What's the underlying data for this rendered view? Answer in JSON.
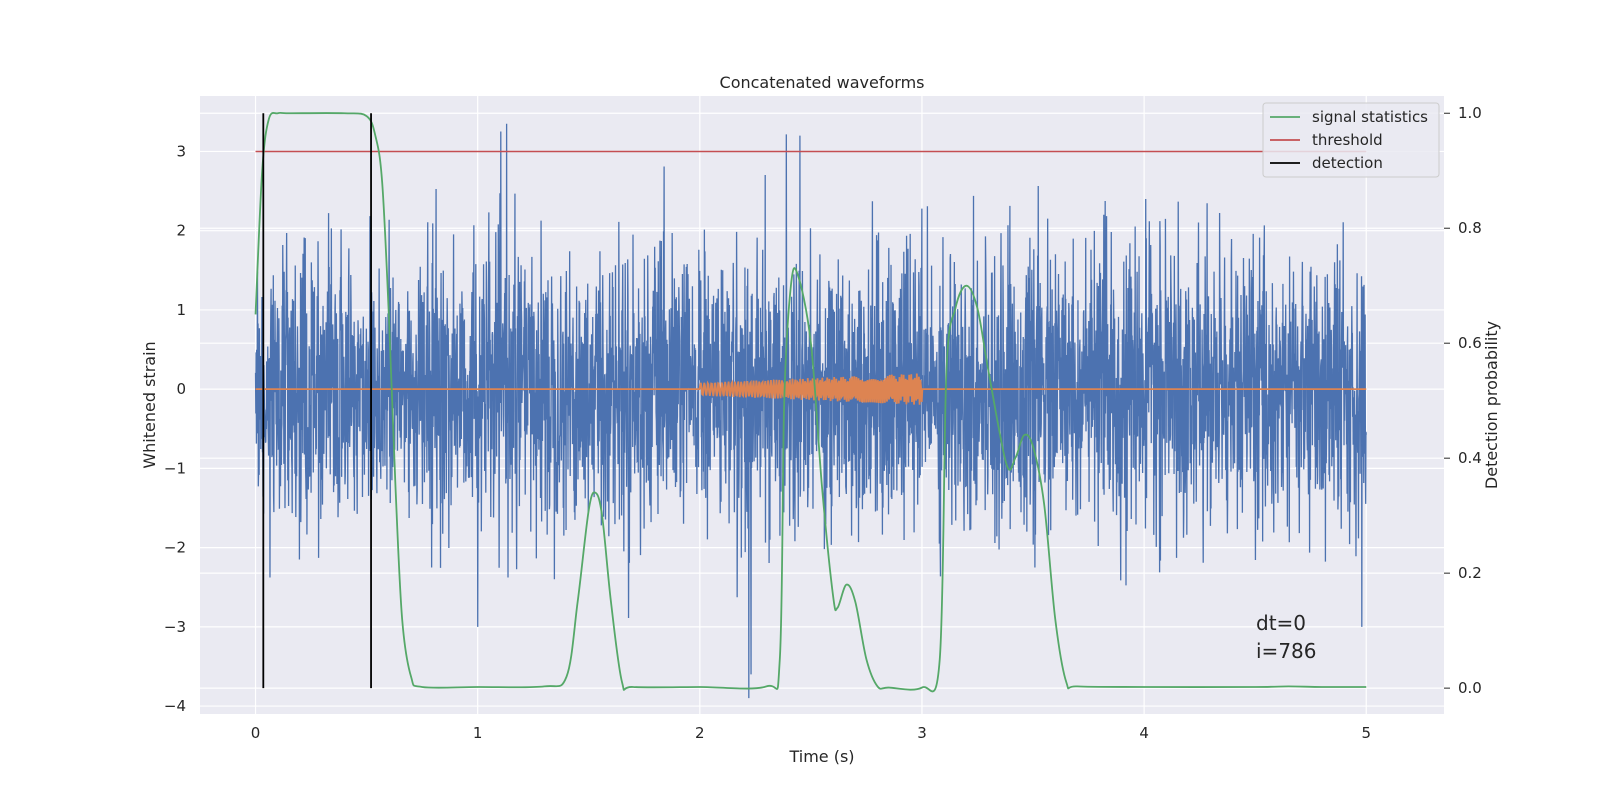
{
  "chart_data": {
    "type": "line",
    "title": "Concatenated waveforms",
    "xlabel": "Time (s)",
    "ylabel_left": "Whitened strain",
    "ylabel_right": "Detection probability",
    "xlim": [
      -0.25,
      5.35
    ],
    "ylim_left": [
      -4.1,
      3.7
    ],
    "ylim_right": [
      -0.045,
      1.03
    ],
    "x_ticks": [
      0,
      1,
      2,
      3,
      4,
      5
    ],
    "y_ticks_left": [
      -4,
      -3,
      -2,
      -1,
      0,
      1,
      2,
      3
    ],
    "y_ticks_right": [
      0.0,
      0.2,
      0.4,
      0.6,
      0.8,
      1.0
    ],
    "grid": true,
    "legend_position": "upper right",
    "series": [
      {
        "name": "",
        "axis": "left",
        "kind": "noise",
        "color": "#4c72b0",
        "x_range": [
          0,
          5
        ],
        "typical_amplitude": 1.0,
        "spikes": [
          [
            1.13,
            3.35
          ],
          [
            2.45,
            3.2
          ],
          [
            2.22,
            -3.9
          ],
          [
            2.23,
            -3.6
          ],
          [
            1.0,
            -3.0
          ],
          [
            4.98,
            -3.0
          ]
        ]
      },
      {
        "name": "",
        "axis": "left",
        "kind": "waveform",
        "color": "#dd8452",
        "baseline": 0,
        "x_range": [
          0,
          5
        ],
        "chirp_x_range": [
          2.0,
          3.0
        ],
        "chirp_amplitude_start": 0.08,
        "chirp_amplitude_end": 0.2
      },
      {
        "name": "signal statistics",
        "axis": "right",
        "color": "#55a868",
        "x": [
          0,
          0.03,
          0.06,
          0.1,
          0.15,
          0.4,
          0.5,
          0.54,
          0.57,
          0.6,
          0.63,
          0.66,
          0.7,
          0.75,
          1.0,
          1.3,
          1.4,
          1.45,
          1.5,
          1.53,
          1.56,
          1.6,
          1.65,
          1.7,
          2.0,
          2.3,
          2.36,
          2.38,
          2.41,
          2.44,
          2.5,
          2.55,
          2.6,
          2.62,
          2.66,
          2.7,
          2.75,
          2.8,
          2.85,
          3.0,
          3.08,
          3.11,
          3.15,
          3.2,
          3.25,
          3.3,
          3.38,
          3.42,
          3.46,
          3.5,
          3.55,
          3.6,
          3.65,
          3.7,
          4.0,
          4.5,
          4.65,
          4.8,
          5.0
        ],
        "y": [
          0.65,
          0.9,
          0.99,
          1.0,
          1.0,
          1.0,
          0.995,
          0.96,
          0.88,
          0.65,
          0.35,
          0.12,
          0.02,
          0.002,
          0.002,
          0.003,
          0.02,
          0.15,
          0.31,
          0.34,
          0.3,
          0.15,
          0.01,
          0.002,
          0.002,
          0.003,
          0.05,
          0.5,
          0.7,
          0.72,
          0.6,
          0.35,
          0.16,
          0.14,
          0.18,
          0.15,
          0.05,
          0.003,
          0.001,
          0.001,
          0.05,
          0.55,
          0.66,
          0.7,
          0.66,
          0.55,
          0.39,
          0.4,
          0.44,
          0.42,
          0.32,
          0.12,
          0.01,
          0.003,
          0.002,
          0.002,
          0.003,
          0.002,
          0.002
        ]
      },
      {
        "name": "threshold",
        "axis": "left",
        "color": "#c44e52",
        "x": [
          0,
          5
        ],
        "y": [
          3,
          3
        ]
      },
      {
        "name": "detection",
        "axis": "right",
        "color": "#000000",
        "x": [
          0.035,
          0.52
        ],
        "y_range": [
          0,
          1
        ]
      }
    ],
    "annotations": [
      "dt=0",
      "i=786"
    ]
  }
}
